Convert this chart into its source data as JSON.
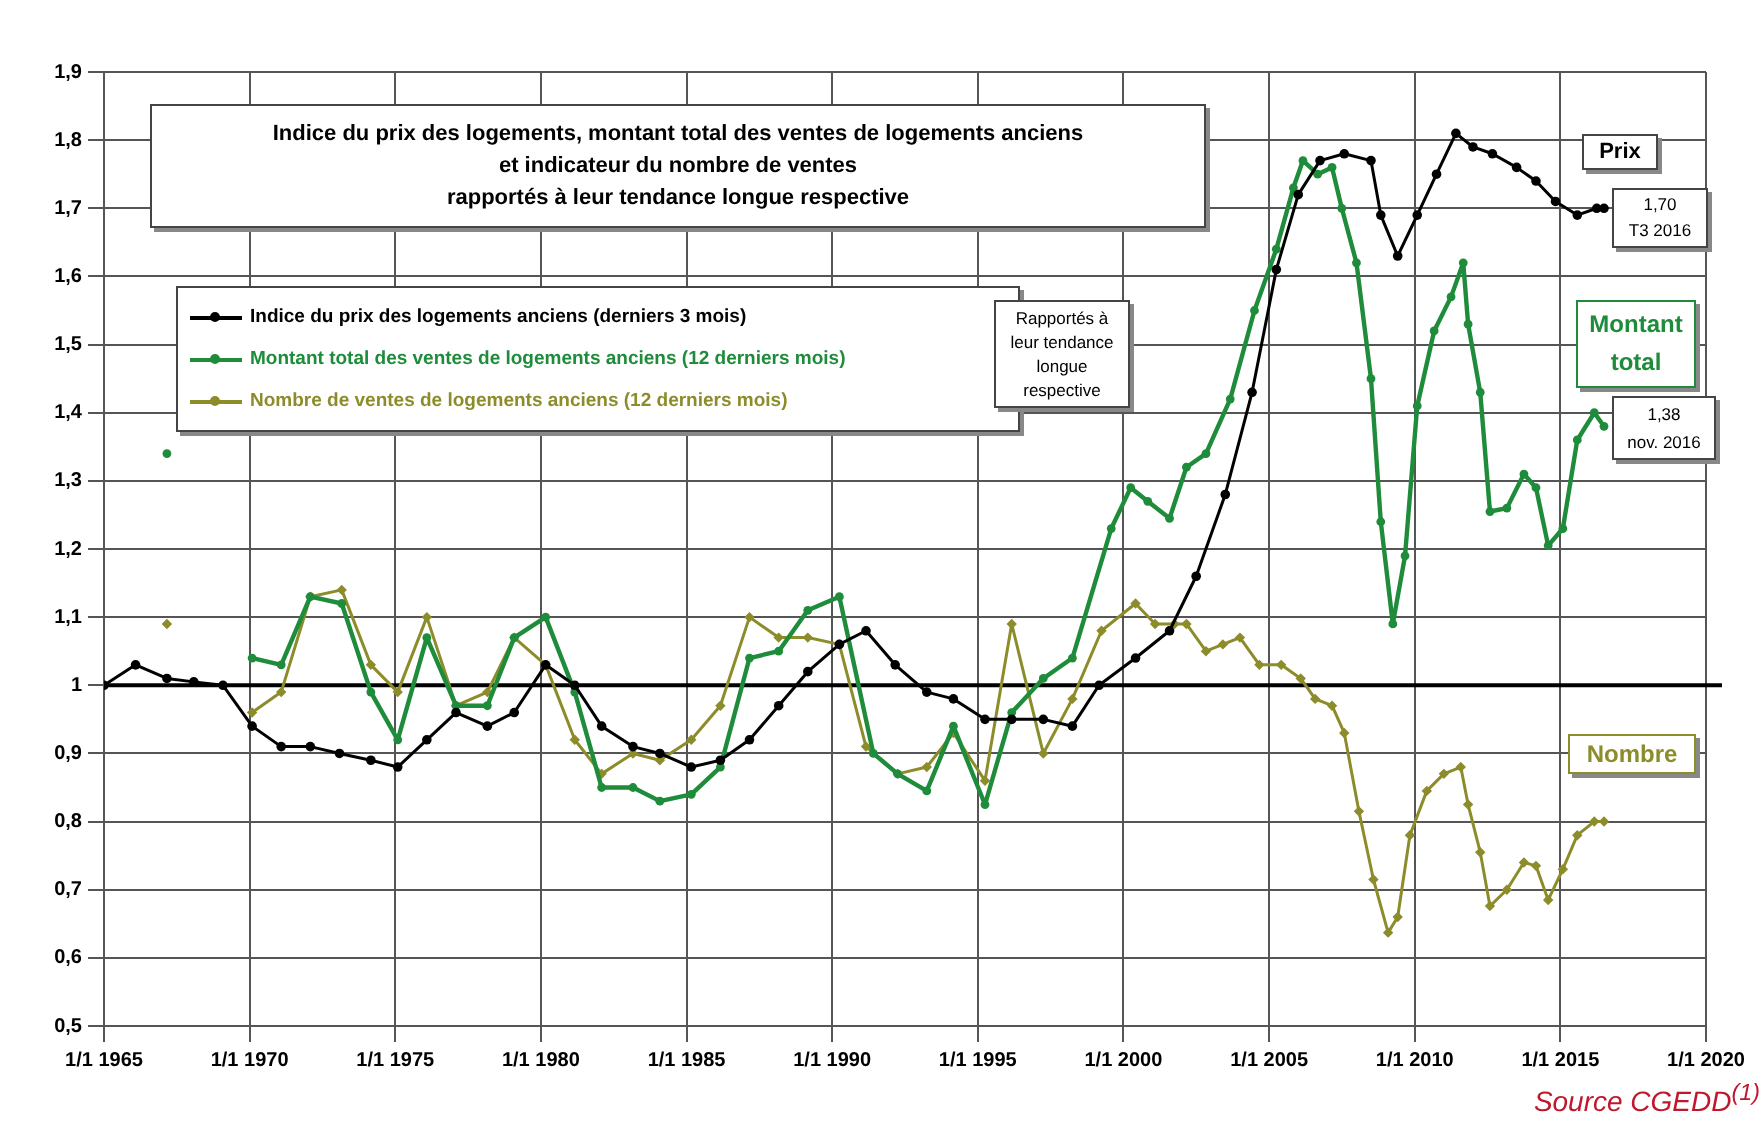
{
  "chart_data": {
    "type": "line",
    "title": "Indice du prix des logements, montant total des ventes de logements anciens\net indicateur du nombre de ventes\nrapportés à leur tendance longue respective",
    "series": [
      {
        "name": "Indice du prix des logements anciens (derniers 3 mois)",
        "color": "#000000",
        "marker": "circle",
        "x": [
          "1965-01",
          "1966-02",
          "1967-03",
          "1968-02",
          "1969-02",
          "1970-02",
          "1971-02",
          "1972-02",
          "1973-02",
          "1974-03",
          "1975-02",
          "1976-02",
          "1977-02",
          "1978-03",
          "1979-02",
          "1980-03",
          "1981-03",
          "1982-02",
          "1983-03",
          "1984-02",
          "1985-03",
          "1986-03",
          "1987-03",
          "1988-03",
          "1989-03",
          "1990-04",
          "1991-03",
          "1992-03",
          "1993-04",
          "1994-03",
          "1995-04",
          "1996-03",
          "1997-04",
          "1998-04",
          "1999-03",
          "2000-06",
          "2001-08",
          "2002-07",
          "2003-07",
          "2004-06",
          "2005-04",
          "2006-01",
          "2006-10",
          "2007-08",
          "2008-07",
          "2008-11",
          "2009-06",
          "2010-02",
          "2010-10",
          "2011-06",
          "2012-01",
          "2012-09",
          "2013-07",
          "2014-03",
          "2014-11",
          "2015-08",
          "2016-04",
          "2016-07"
        ],
        "values": [
          1.0,
          1.03,
          1.01,
          1.005,
          1.0,
          0.94,
          0.91,
          0.91,
          0.9,
          0.89,
          0.88,
          0.92,
          0.96,
          0.94,
          0.96,
          1.03,
          1.0,
          0.94,
          0.91,
          0.9,
          0.88,
          0.89,
          0.92,
          0.97,
          1.02,
          1.06,
          1.08,
          1.03,
          0.99,
          0.98,
          0.95,
          0.95,
          0.95,
          0.94,
          1.0,
          1.04,
          1.08,
          1.16,
          1.28,
          1.43,
          1.61,
          1.72,
          1.77,
          1.78,
          1.77,
          1.69,
          1.63,
          1.69,
          1.75,
          1.81,
          1.79,
          1.78,
          1.76,
          1.74,
          1.71,
          1.69,
          1.7,
          1.7
        ]
      },
      {
        "name": "Montant total des ventes de logements anciens (12 derniers mois)",
        "color": "#1e8c3a",
        "marker": "circle",
        "x": [
          "1967-03",
          "1968-07",
          "1970-02",
          "1971-02",
          "1972-02",
          "1973-03",
          "1974-03",
          "1975-02",
          "1976-02",
          "1977-02",
          "1978-03",
          "1979-02",
          "1980-03",
          "1981-03",
          "1982-02",
          "1983-03",
          "1984-02",
          "1985-03",
          "1986-03",
          "1987-03",
          "1988-03",
          "1989-03",
          "1990-04",
          "1991-06",
          "1992-04",
          "1993-04",
          "1994-03",
          "1995-04",
          "1996-03",
          "1997-04",
          "1998-04",
          "1999-08",
          "2000-04",
          "2000-11",
          "2001-08",
          "2002-03",
          "2002-11",
          "2003-09",
          "2004-07",
          "2005-04",
          "2005-11",
          "2006-03",
          "2006-09",
          "2007-03",
          "2007-07",
          "2008-01",
          "2008-07",
          "2008-11",
          "2009-04",
          "2009-09",
          "2010-02",
          "2010-09",
          "2011-04",
          "2011-09",
          "2011-11",
          "2012-04",
          "2012-08",
          "2013-03",
          "2013-10",
          "2014-03",
          "2014-08",
          "2015-02",
          "2015-08",
          "2016-03",
          "2016-07"
        ],
        "values": [
          1.34,
          null,
          1.04,
          1.03,
          1.13,
          1.12,
          0.99,
          0.92,
          1.07,
          0.97,
          0.97,
          1.07,
          1.1,
          0.99,
          0.85,
          0.85,
          0.83,
          0.84,
          0.88,
          1.04,
          1.05,
          1.11,
          1.13,
          0.9,
          0.87,
          0.845,
          0.94,
          0.825,
          0.96,
          1.01,
          1.04,
          1.23,
          1.29,
          1.27,
          1.245,
          1.32,
          1.34,
          1.42,
          1.55,
          1.64,
          1.73,
          1.77,
          1.75,
          1.76,
          1.7,
          1.62,
          1.45,
          1.24,
          1.09,
          1.19,
          1.41,
          1.52,
          1.57,
          1.62,
          1.53,
          1.43,
          1.255,
          1.26,
          1.31,
          1.29,
          1.205,
          1.23,
          1.36,
          1.4,
          1.38
        ]
      },
      {
        "name": "Nombre de ventes de logements anciens (12 derniers mois)",
        "color": "#8c8c2a",
        "marker": "diamond",
        "x": [
          "1967-03",
          "1968-07",
          "1970-02",
          "1971-02",
          "1972-02",
          "1973-03",
          "1974-03",
          "1975-02",
          "1976-02",
          "1977-02",
          "1978-03",
          "1979-02",
          "1980-03",
          "1981-03",
          "1982-02",
          "1983-03",
          "1984-02",
          "1985-03",
          "1986-03",
          "1987-03",
          "1988-03",
          "1989-03",
          "1990-04",
          "1991-03",
          "1992-04",
          "1993-04",
          "1994-03",
          "1995-04",
          "1996-03",
          "1997-04",
          "1998-04",
          "1999-04",
          "2000-06",
          "2001-02",
          "2001-10",
          "2002-03",
          "2002-11",
          "2003-06",
          "2004-01",
          "2004-09",
          "2005-06",
          "2006-02",
          "2006-08",
          "2007-03",
          "2007-08",
          "2008-02",
          "2008-08",
          "2009-02",
          "2009-06",
          "2009-11",
          "2010-06",
          "2011-01",
          "2011-08",
          "2011-11",
          "2012-04",
          "2012-08",
          "2013-03",
          "2013-10",
          "2014-03",
          "2014-08",
          "2015-02",
          "2015-08",
          "2016-03",
          "2016-07"
        ],
        "values": [
          1.09,
          null,
          0.96,
          0.99,
          1.13,
          1.14,
          1.03,
          0.99,
          1.1,
          0.97,
          0.99,
          1.07,
          1.03,
          0.92,
          0.87,
          0.9,
          0.89,
          0.92,
          0.97,
          1.1,
          1.07,
          1.07,
          1.06,
          0.91,
          0.87,
          0.88,
          0.93,
          0.86,
          1.09,
          0.9,
          0.98,
          1.08,
          1.12,
          1.09,
          1.09,
          1.09,
          1.05,
          1.06,
          1.07,
          1.03,
          1.03,
          1.01,
          0.98,
          0.97,
          0.93,
          0.815,
          0.715,
          0.637,
          0.66,
          0.78,
          0.845,
          0.87,
          0.88,
          0.825,
          0.755,
          0.676,
          0.7,
          0.74,
          0.735,
          0.685,
          0.73,
          0.78,
          0.8,
          0.8
        ]
      }
    ],
    "xlim": [
      "1965-01-01",
      "2020-01-01"
    ],
    "xticks": [
      {
        "value": "1965-01-01",
        "label": "1/1 1965"
      },
      {
        "value": "1970-01-01",
        "label": "1/1 1970"
      },
      {
        "value": "1975-01-01",
        "label": "1/1 1975"
      },
      {
        "value": "1980-01-01",
        "label": "1/1 1980"
      },
      {
        "value": "1985-01-01",
        "label": "1/1 1985"
      },
      {
        "value": "1990-01-01",
        "label": "1/1 1990"
      },
      {
        "value": "1995-01-01",
        "label": "1/1 1995"
      },
      {
        "value": "2000-01-01",
        "label": "1/1 2000"
      },
      {
        "value": "2005-01-01",
        "label": "1/1 2005"
      },
      {
        "value": "2010-01-01",
        "label": "1/1 2010"
      },
      {
        "value": "2015-01-01",
        "label": "1/1 2015"
      },
      {
        "value": "2020-01-01",
        "label": "1/1 2020"
      }
    ],
    "ylim": [
      0.5,
      1.9
    ],
    "yticks": [
      {
        "value": 0.5,
        "label": "0,5"
      },
      {
        "value": 0.6,
        "label": "0,6"
      },
      {
        "value": 0.7,
        "label": "0,7"
      },
      {
        "value": 0.8,
        "label": "0,8"
      },
      {
        "value": 0.9,
        "label": "0,9"
      },
      1,
      {
        "value": 1.1,
        "label": "1,1"
      },
      {
        "value": 1.2,
        "label": "1,2"
      },
      {
        "value": 1.3,
        "label": "1,3"
      },
      {
        "value": 1.4,
        "label": "1,4"
      },
      {
        "value": 1.5,
        "label": "1,5"
      },
      {
        "value": 1.6,
        "label": "1,6"
      },
      {
        "value": 1.7,
        "label": "1,7"
      },
      {
        "value": 1.8,
        "label": "1,8"
      },
      {
        "value": 1.9,
        "label": "1,9"
      }
    ],
    "ref_lines": [
      {
        "axis": "y",
        "value": 1,
        "color": "#000000"
      }
    ],
    "grid": true,
    "legend": "top left",
    "line_style": "solid",
    "annotations": [
      "Rapportés à\nleur tendance\nlongue\nrespective",
      "Prix",
      "1,70\nT3 2016",
      "Montant\ntotal",
      "1,38\nnov. 2016",
      "Nombre",
      "Source CGEDD$^{(1)}$"
    ]
  }
}
